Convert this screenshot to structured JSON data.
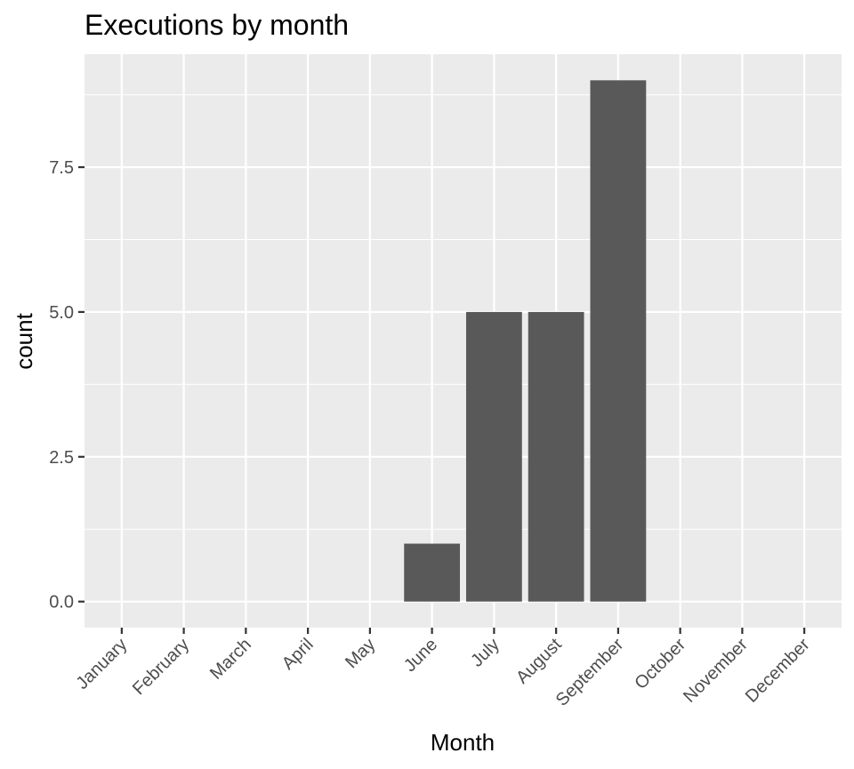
{
  "chart_data": {
    "type": "bar",
    "title": "Executions by month",
    "xlabel": "Month",
    "ylabel": "count",
    "categories": [
      "January",
      "February",
      "March",
      "April",
      "May",
      "June",
      "July",
      "August",
      "September",
      "October",
      "November",
      "December"
    ],
    "values": [
      0,
      0,
      0,
      0,
      0,
      1,
      5,
      5,
      9,
      0,
      0,
      0
    ],
    "ylim": [
      -0.45,
      9.45
    ],
    "yticks": [
      0,
      2.5,
      5,
      7.5
    ],
    "ytick_labels": [
      "0.0",
      "2.5",
      "5.0",
      "7.5"
    ],
    "grid": true,
    "colors": {
      "panel_background": "#ebebeb",
      "grid_line": "#ffffff",
      "bar_fill": "#595959",
      "tick_mark": "#333333"
    }
  }
}
